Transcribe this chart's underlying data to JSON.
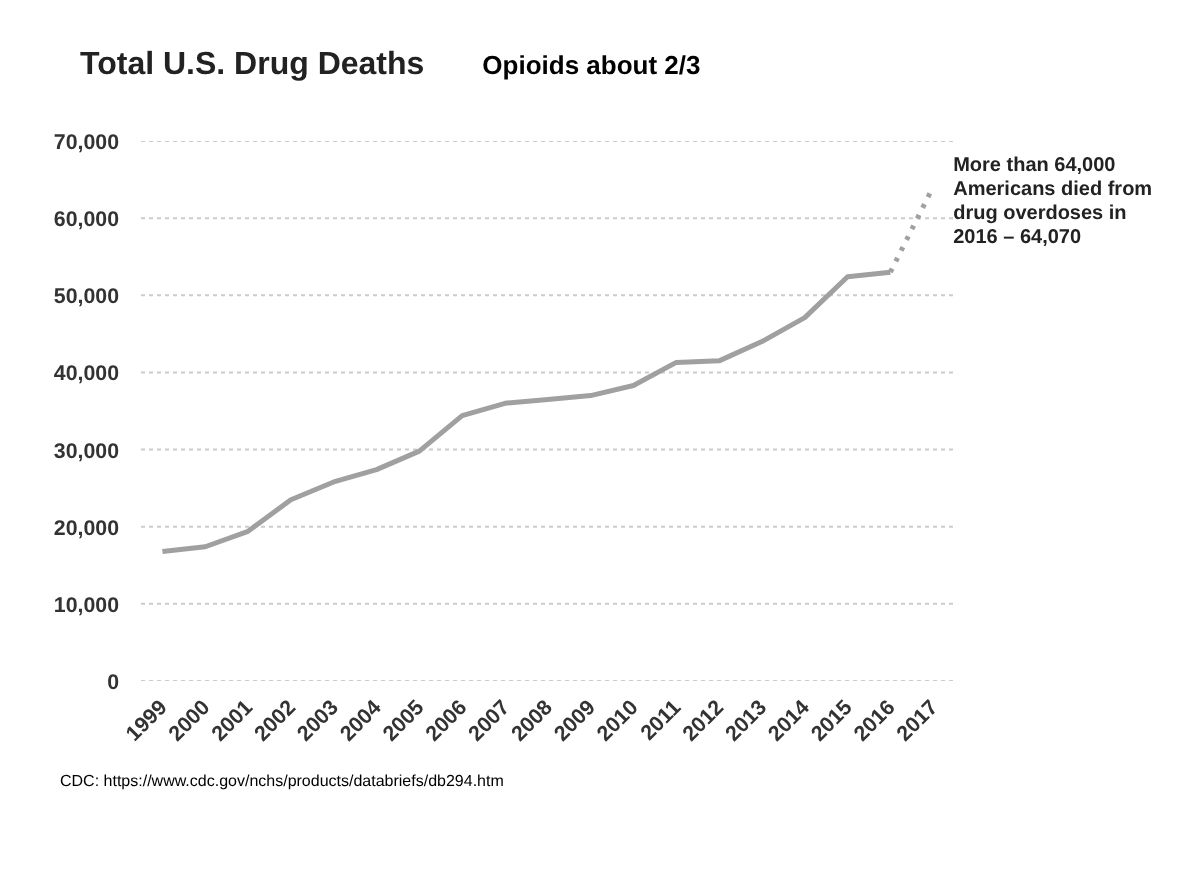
{
  "chart_data": {
    "type": "line",
    "title": "Total U.S. Drug Deaths",
    "subtitle": "Opioids about 2/3",
    "categories": [
      "1999",
      "2000",
      "2001",
      "2002",
      "2003",
      "2004",
      "2005",
      "2006",
      "2007",
      "2008",
      "2009",
      "2010",
      "2011",
      "2012",
      "2013",
      "2014",
      "2015",
      "2016",
      "2017"
    ],
    "series": [
      {
        "color": "#a0a0a0",
        "line_style": "solid",
        "values": [
          16800,
          17400,
          19400,
          23500,
          25800,
          27400,
          29800,
          34400,
          36000,
          36500,
          37000,
          38300,
          41300,
          41500,
          44000,
          47100,
          52400,
          53000,
          null
        ]
      },
      {
        "color": "#a0a0a0",
        "line_style": "dotted",
        "values": [
          null,
          null,
          null,
          null,
          null,
          null,
          null,
          null,
          null,
          null,
          null,
          null,
          null,
          null,
          null,
          null,
          null,
          53000,
          64070
        ]
      }
    ],
    "ylim": [
      0,
      70000
    ],
    "yticks": [
      0,
      {
        "value": 10000,
        "label": "10,000"
      },
      {
        "value": 20000,
        "label": "20,000"
      },
      {
        "value": 30000,
        "label": "30,000"
      },
      {
        "value": 40000,
        "label": "40,000"
      },
      {
        "value": 50000,
        "label": "50,000"
      },
      {
        "value": 60000,
        "label": "60,000"
      },
      {
        "value": 70000,
        "label": "70,000"
      }
    ],
    "grid": "y",
    "annotations": [
      {
        "text": "More than 64,000 Americans died from drug overdoses in 2016 – 64,070",
        "x": "2017",
        "y": 64070
      },
      "CDC: https://www.cdc.gov/nchs/products/databriefs/db294.htm"
    ]
  }
}
